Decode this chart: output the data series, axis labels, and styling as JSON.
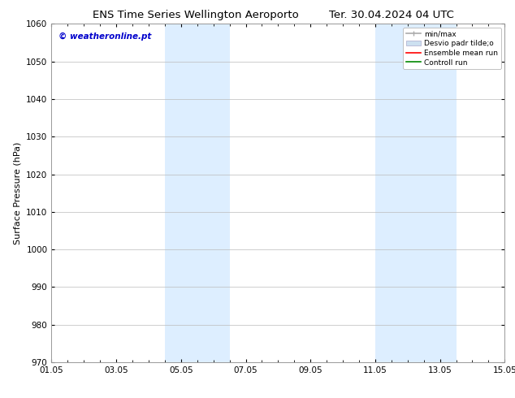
{
  "title_left": "ENS Time Series Wellington Aeroporto",
  "title_right": "Ter. 30.04.2024 04 UTC",
  "ylabel": "Surface Pressure (hPa)",
  "ylim": [
    970,
    1060
  ],
  "yticks": [
    970,
    980,
    990,
    1000,
    1010,
    1020,
    1030,
    1040,
    1050,
    1060
  ],
  "xtick_labels": [
    "01.05",
    "03.05",
    "05.05",
    "07.05",
    "09.05",
    "11.05",
    "13.05",
    "15.05"
  ],
  "xtick_positions": [
    0,
    2,
    4,
    6,
    8,
    10,
    12,
    14
  ],
  "xlim": [
    0,
    14
  ],
  "shaded_bands": [
    {
      "x_start": 3.5,
      "x_end": 5.5,
      "color": "#ddeeff"
    },
    {
      "x_start": 10.0,
      "x_end": 12.5,
      "color": "#ddeeff"
    }
  ],
  "watermark_text": "© weatheronline.pt",
  "watermark_color": "#0000cc",
  "background_color": "#ffffff",
  "plot_bg_color": "#ffffff",
  "grid_color": "#bbbbbb",
  "title_fontsize": 9.5,
  "tick_fontsize": 7.5,
  "ylabel_fontsize": 8,
  "watermark_fontsize": 7.5,
  "legend_fontsize": 6.5,
  "minmax_color": "#aaaaaa",
  "std_color": "#cce0f0",
  "mean_color": "#ff0000",
  "ctrl_color": "#008800"
}
